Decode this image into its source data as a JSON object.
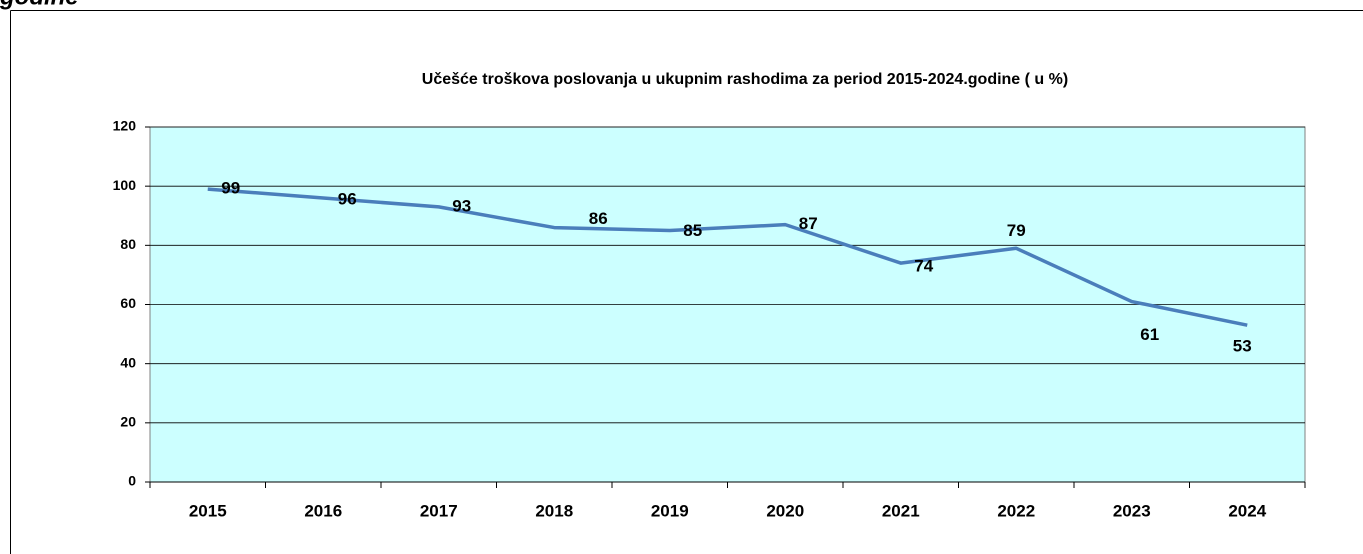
{
  "heading": "godine",
  "chart_data": {
    "type": "line",
    "title": "Učešće troškova poslovanja u ukupnim rashodima za period 2015-2024.godine ( u %)",
    "categories": [
      "2015",
      "2016",
      "2017",
      "2018",
      "2019",
      "2020",
      "2021",
      "2022",
      "2023",
      "2024"
    ],
    "values": [
      99,
      96,
      93,
      86,
      85,
      87,
      74,
      79,
      61,
      53
    ],
    "color": "#4a7ebb",
    "background": "#ccffff",
    "ylim": [
      0,
      120
    ],
    "yticks": [
      0,
      20,
      40,
      60,
      80,
      100,
      120
    ],
    "grid": true
  }
}
